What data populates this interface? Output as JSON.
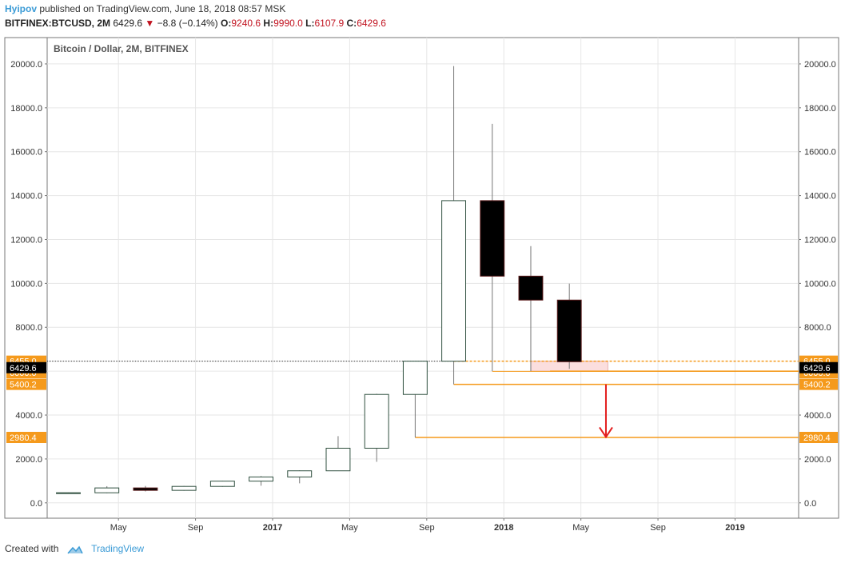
{
  "header": {
    "author": "Hyipov",
    "published_text": "published on TradingView.com, June 18, 2018 08:57 MSK",
    "symbol": "BITFINEX:BTCUSD, 2M",
    "last": "6429.6",
    "change_arrow": "▼",
    "change": "−8.8 (−0.14%)",
    "o_label": "O:",
    "o_value": "9240.6",
    "h_label": "H:",
    "h_value": "9990.0",
    "l_label": "L:",
    "l_value": "6107.9",
    "c_label": "C:",
    "c_value": "6429.6"
  },
  "footer": {
    "created_with": "Created with",
    "brand": "TradingView",
    "logo_icon": "tradingview-cloud-icon"
  },
  "chart_data": {
    "type": "candlestick",
    "title": "Bitcoin / Dollar, 2M, BITFINEX",
    "ylim": [
      -700,
      21200
    ],
    "y_ticks": [
      0,
      2000,
      4000,
      6000,
      8000,
      10000,
      12000,
      14000,
      16000,
      18000,
      20000
    ],
    "y_tick_labels": [
      "0.0",
      "2000.0",
      "4000.0",
      "6000.0",
      "8000.0",
      "10000.0",
      "12000.0",
      "14000.0",
      "16000.0",
      "18000.0",
      "20000.0"
    ],
    "x_ticks": [
      {
        "label": "May",
        "pos": 1.3,
        "bold": false
      },
      {
        "label": "Sep",
        "pos": 3.3,
        "bold": false
      },
      {
        "label": "2017",
        "pos": 5.3,
        "bold": true
      },
      {
        "label": "May",
        "pos": 7.3,
        "bold": false
      },
      {
        "label": "Sep",
        "pos": 9.3,
        "bold": false
      },
      {
        "label": "2018",
        "pos": 11.3,
        "bold": true
      },
      {
        "label": "May",
        "pos": 13.3,
        "bold": false
      },
      {
        "label": "Sep",
        "pos": 15.3,
        "bold": false
      },
      {
        "label": "2019",
        "pos": 17.3,
        "bold": true
      }
    ],
    "x_range": [
      -0.55,
      18.95
    ],
    "candles": [
      {
        "o": 430,
        "h": 470,
        "l": 420,
        "c": 460
      },
      {
        "o": 460,
        "h": 760,
        "l": 440,
        "c": 680
      },
      {
        "o": 680,
        "h": 770,
        "l": 520,
        "c": 570
      },
      {
        "o": 570,
        "h": 770,
        "l": 550,
        "c": 750
      },
      {
        "o": 750,
        "h": 1010,
        "l": 730,
        "c": 990
      },
      {
        "o": 990,
        "h": 1220,
        "l": 780,
        "c": 1180
      },
      {
        "o": 1180,
        "h": 1480,
        "l": 890,
        "c": 1460
      },
      {
        "o": 1460,
        "h": 3040,
        "l": 1460,
        "c": 2490
      },
      {
        "o": 2490,
        "h": 4970,
        "l": 1870,
        "c": 4940
      },
      {
        "o": 4940,
        "h": 6470,
        "l": 2980,
        "c": 6455
      },
      {
        "o": 6455,
        "h": 19900,
        "l": 5400,
        "c": 13770
      },
      {
        "o": 13770,
        "h": 17270,
        "l": 6000,
        "c": 10330
      },
      {
        "o": 10330,
        "h": 11700,
        "l": 6000,
        "c": 9240
      },
      {
        "o": 9240,
        "h": 9990,
        "l": 6108,
        "c": 6430
      }
    ],
    "price_lines": [
      {
        "value": 6455.0,
        "label": "6455.0",
        "style": "dotted-orange",
        "start": 10
      },
      {
        "value": 6000.0,
        "label": "6000.0",
        "style": "orange",
        "start": 12.5
      },
      {
        "value": 5400.2,
        "label": "5400.2",
        "style": "orange",
        "start": 10
      },
      {
        "value": 2980.4,
        "label": "2980.4",
        "style": "orange",
        "start": 9
      }
    ],
    "last_price": {
      "value": 6429.6,
      "label": "6429.6"
    },
    "range_box": {
      "x0": 12,
      "x1": 14,
      "y0": 6000,
      "y1": 6455
    },
    "arrow": {
      "x": 13.95,
      "from": 5400,
      "to": 3000
    },
    "colors": {
      "up_fill": "#ffffff",
      "up_border": "#2f4f3f",
      "down_fill": "#000000",
      "down_border": "#5a1a1a",
      "wick": "#777777",
      "orange": "#f59a1c",
      "red_arrow": "#e31e1e",
      "box_fill": "#fbdede",
      "box_stroke": "#e8b4b4",
      "grid": "#e6e6e6",
      "axis_text": "#333333",
      "last_tag": "#000000"
    }
  }
}
